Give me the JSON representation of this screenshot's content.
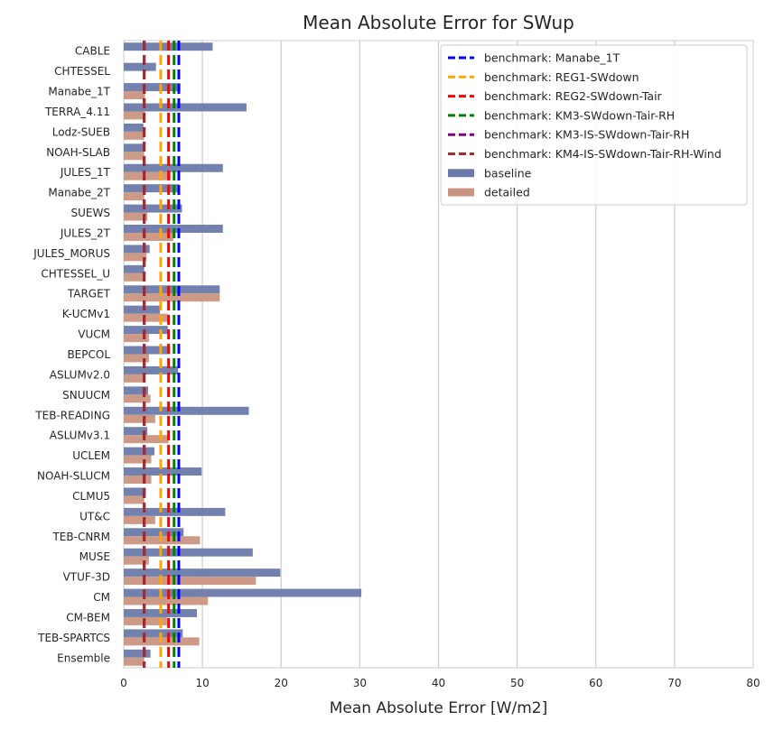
{
  "chart_data": {
    "type": "bar",
    "orientation": "horizontal",
    "title": "Mean Absolute Error for SWup",
    "xlabel": "Mean Absolute Error [W/m2]",
    "ylabel": "",
    "xlim": [
      0,
      80
    ],
    "xticks": [
      "0",
      "10",
      "20",
      "30",
      "40",
      "50",
      "60",
      "70",
      "80"
    ],
    "grid": "x",
    "legend_position": "top-right",
    "categories": [
      "CABLE",
      "CHTESSEL",
      "Manabe_1T",
      "TERRA_4.11",
      "Lodz-SUEB",
      "NOAH-SLAB",
      "JULES_1T",
      "Manabe_2T",
      "SUEWS",
      "JULES_2T",
      "JULES_MORUS",
      "CHTESSEL_U",
      "TARGET",
      "K-UCMv1",
      "VUCM",
      "BEPCOL",
      "ASLUMv2.0",
      "SNUUCM",
      "TEB-READING",
      "ASLUMv3.1",
      "UCLEM",
      "NOAH-SLUCM",
      "CLMU5",
      "UT&C",
      "TEB-CNRM",
      "MUSE",
      "VTUF-3D",
      "CM",
      "CM-BEM",
      "TEB-SPARTCS",
      "Ensemble"
    ],
    "series": [
      {
        "name": "baseline",
        "color": "#6b7aaa",
        "values": [
          11.3,
          4.1,
          7.2,
          15.6,
          2.5,
          2.6,
          12.6,
          7.0,
          7.4,
          12.6,
          3.3,
          2.6,
          12.2,
          4.6,
          5.6,
          5.9,
          6.9,
          3.1,
          15.9,
          3.0,
          3.9,
          9.9,
          2.8,
          12.9,
          7.6,
          16.4,
          19.9,
          30.2,
          9.3,
          7.5,
          3.4
        ]
      },
      {
        "name": "detailed",
        "color": "#c99580",
        "values": [
          0,
          0,
          2.7,
          2.7,
          2.6,
          2.6,
          6.0,
          2.6,
          3.0,
          6.3,
          2.9,
          2.6,
          12.2,
          5.6,
          3.2,
          3.2,
          2.7,
          3.4,
          4.0,
          5.7,
          3.5,
          3.5,
          2.6,
          4.0,
          9.7,
          3.2,
          16.8,
          10.7,
          5.5,
          9.6,
          2.6
        ]
      }
    ],
    "benchmarks": [
      {
        "name": "benchmark: Manabe_1T",
        "value": 7.0,
        "color": "#0000ff"
      },
      {
        "name": "benchmark: REG1-SWdown",
        "value": 4.7,
        "color": "#ffa500"
      },
      {
        "name": "benchmark: REG2-SWdown-Tair",
        "value": 5.7,
        "color": "#ff0000"
      },
      {
        "name": "benchmark: KM3-SWdown-Tair-RH",
        "value": 6.4,
        "color": "#008000"
      },
      {
        "name": "benchmark: KM3-IS-SWdown-Tair-RH",
        "value": 2.6,
        "color": "#800080"
      },
      {
        "name": "benchmark: KM4-IS-SWdown-Tair-RH-Wind",
        "value": 2.6,
        "color": "#a52a2a"
      }
    ]
  }
}
